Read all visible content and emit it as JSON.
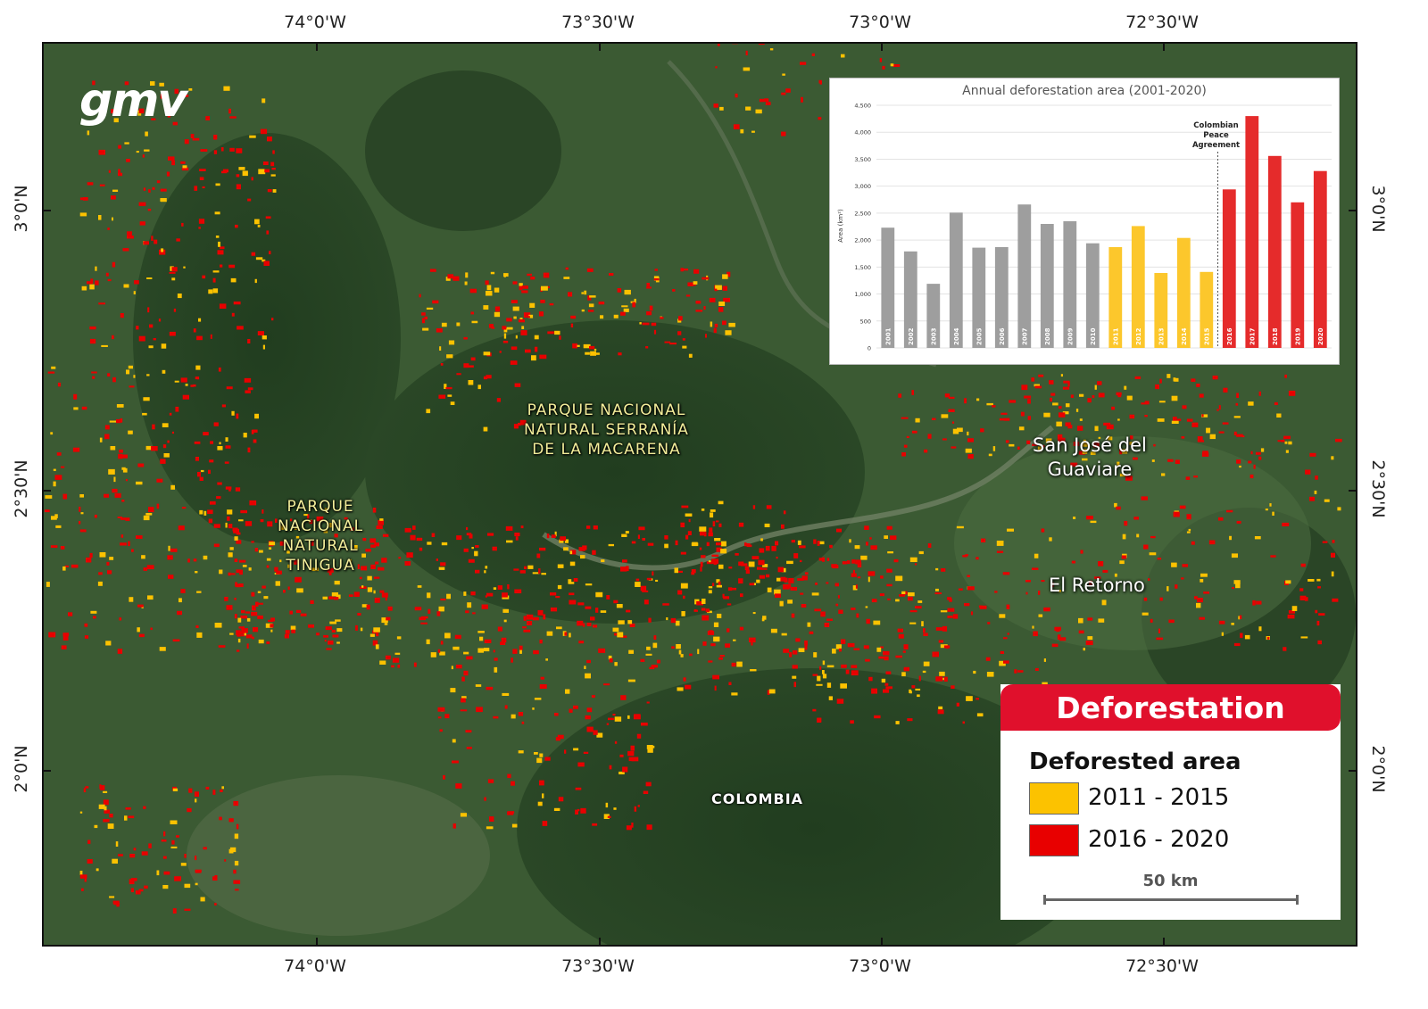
{
  "graticule": {
    "top": [
      "74°0'W",
      "73°30'W",
      "73°0'W",
      "72°30'W"
    ],
    "bottom": [
      "74°0'W",
      "73°30'W",
      "73°0'W",
      "72°30'W"
    ],
    "left": [
      "3°0'N",
      "2°30'N",
      "2°0'N"
    ],
    "right": [
      "3°0'N",
      "2°30'N",
      "2°0'N"
    ]
  },
  "logo": "gmv",
  "places": {
    "macarena": "PARQUE NACIONAL\nNATURAL SERRANÍA\nDE LA MACARENA",
    "tinigua": "PARQUE\nNACIONAL\nNATURAL\nTINIGUA",
    "san_jose": "San José del\nGuaviare",
    "el_retorno": "El Retorno",
    "colombia": "COLOMBIA"
  },
  "chart_data": {
    "type": "bar",
    "title": "Annual deforestation area (2001-2020)",
    "ylabel": "Area (km²)",
    "ylim": [
      0,
      4500
    ],
    "yticks": [
      "0",
      "500",
      "1,000",
      "1,500",
      "2,000",
      "2,500",
      "3,000",
      "3,500",
      "4,000",
      "4,500"
    ],
    "categories": [
      "2001",
      "2002",
      "2003",
      "2004",
      "2005",
      "2006",
      "2007",
      "2008",
      "2009",
      "2010",
      "2011",
      "2012",
      "2013",
      "2014",
      "2015",
      "2016",
      "2017",
      "2018",
      "2019",
      "2020"
    ],
    "values": [
      2230,
      1790,
      1190,
      2510,
      1860,
      1870,
      2660,
      2300,
      2350,
      1940,
      1870,
      2260,
      1390,
      2040,
      1410,
      2940,
      4300,
      3560,
      2700,
      3280
    ],
    "colors": [
      "#9e9e9e",
      "#9e9e9e",
      "#9e9e9e",
      "#9e9e9e",
      "#9e9e9e",
      "#9e9e9e",
      "#9e9e9e",
      "#9e9e9e",
      "#9e9e9e",
      "#9e9e9e",
      "#fcc72c",
      "#fcc72c",
      "#fcc72c",
      "#fcc72c",
      "#fcc72c",
      "#e52b2b",
      "#e52b2b",
      "#e52b2b",
      "#e52b2b",
      "#e52b2b"
    ],
    "annotation": "Colombian\nPeace\nAgreement",
    "grid": true
  },
  "legend": {
    "header": "Deforestation",
    "subtitle": "Deforested area",
    "items": [
      {
        "label": "2011 - 2015",
        "color": "#fcc200"
      },
      {
        "label": "2016 - 2020",
        "color": "#e80000"
      }
    ],
    "scale_label": "50 km"
  },
  "colors": {
    "forest": "#2c4a28",
    "deforest_early": "#fcc200",
    "deforest_late": "#e80000",
    "accent": "#e0102c"
  }
}
